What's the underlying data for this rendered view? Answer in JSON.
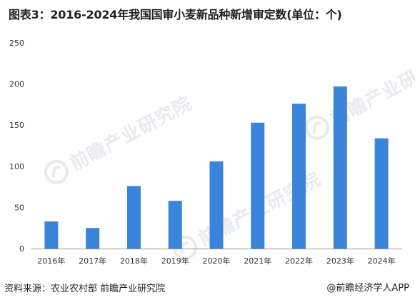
{
  "title": "图表3：2016-2024年我国国审小麦新品种新增审定数(单位：个)",
  "footer": {
    "source": "资料来源：农业农村部 前瞻产业研究院",
    "brand": "@前瞻经济学人APP"
  },
  "watermark": {
    "text": "前瞻产业研究院"
  },
  "colors": {
    "bar": "#3b84dc",
    "axis": "#999999",
    "text": "#222222"
  },
  "chart_data": {
    "type": "bar",
    "title": "图表3：2016-2024年我国国审小麦新品种新增审定数(单位：个)",
    "xlabel": "",
    "ylabel": "",
    "categories": [
      "2016年",
      "2017年",
      "2018年",
      "2019年",
      "2020年",
      "2021年",
      "2022年",
      "2023年",
      "2024年"
    ],
    "values": [
      33,
      25,
      76,
      58,
      106,
      153,
      176,
      197,
      134
    ],
    "ylim": [
      0,
      250
    ],
    "yticks": [
      0,
      50,
      100,
      150,
      200,
      250
    ],
    "grid": false,
    "legend": "none"
  }
}
